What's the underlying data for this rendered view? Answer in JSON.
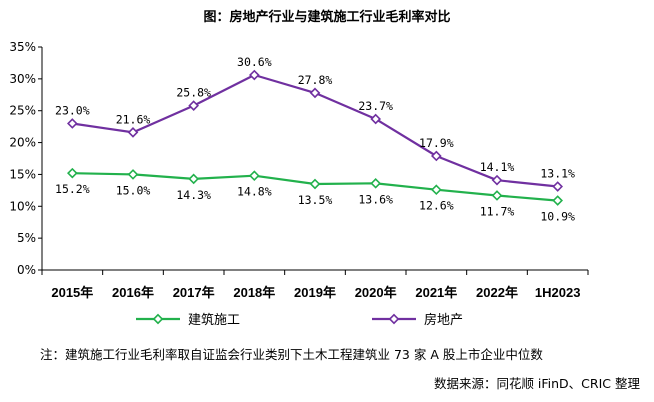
{
  "chart_data": {
    "type": "line",
    "title": "图：房地产行业与建筑施工行业毛利率对比",
    "categories": [
      "2015年",
      "2016年",
      "2017年",
      "2018年",
      "2019年",
      "2020年",
      "2021年",
      "2022年",
      "1H2023"
    ],
    "ylim": [
      0,
      35
    ],
    "yticks": [
      0,
      5,
      10,
      15,
      20,
      25,
      30,
      35
    ],
    "ytick_labels": [
      "0%",
      "5%",
      "10%",
      "15%",
      "20%",
      "25%",
      "30%",
      "35%"
    ],
    "grid": false,
    "legend_position": "bottom",
    "series": [
      {
        "name": "建筑施工",
        "color": "#22b14c",
        "values": [
          15.2,
          15.0,
          14.3,
          14.8,
          13.5,
          13.6,
          12.6,
          11.7,
          10.9
        ],
        "labels": [
          "15.2%",
          "15.0%",
          "14.3%",
          "14.8%",
          "13.5%",
          "13.6%",
          "12.6%",
          "11.7%",
          "10.9%"
        ],
        "label_position": "below"
      },
      {
        "name": "房地产",
        "color": "#7030a0",
        "values": [
          23.0,
          21.6,
          25.8,
          30.6,
          27.8,
          23.7,
          17.9,
          14.1,
          13.1
        ],
        "labels": [
          "23.0%",
          "21.6%",
          "25.8%",
          "30.6%",
          "27.8%",
          "23.7%",
          "17.9%",
          "14.1%",
          "13.1%"
        ],
        "label_position": "above"
      }
    ]
  },
  "notes": {
    "footnote": "注：建筑施工行业毛利率取自证监会行业类别下土木工程建筑业 73 家 A 股上市企业中位数",
    "source": "数据来源：同花顺 iFinD、CRIC 整理"
  }
}
